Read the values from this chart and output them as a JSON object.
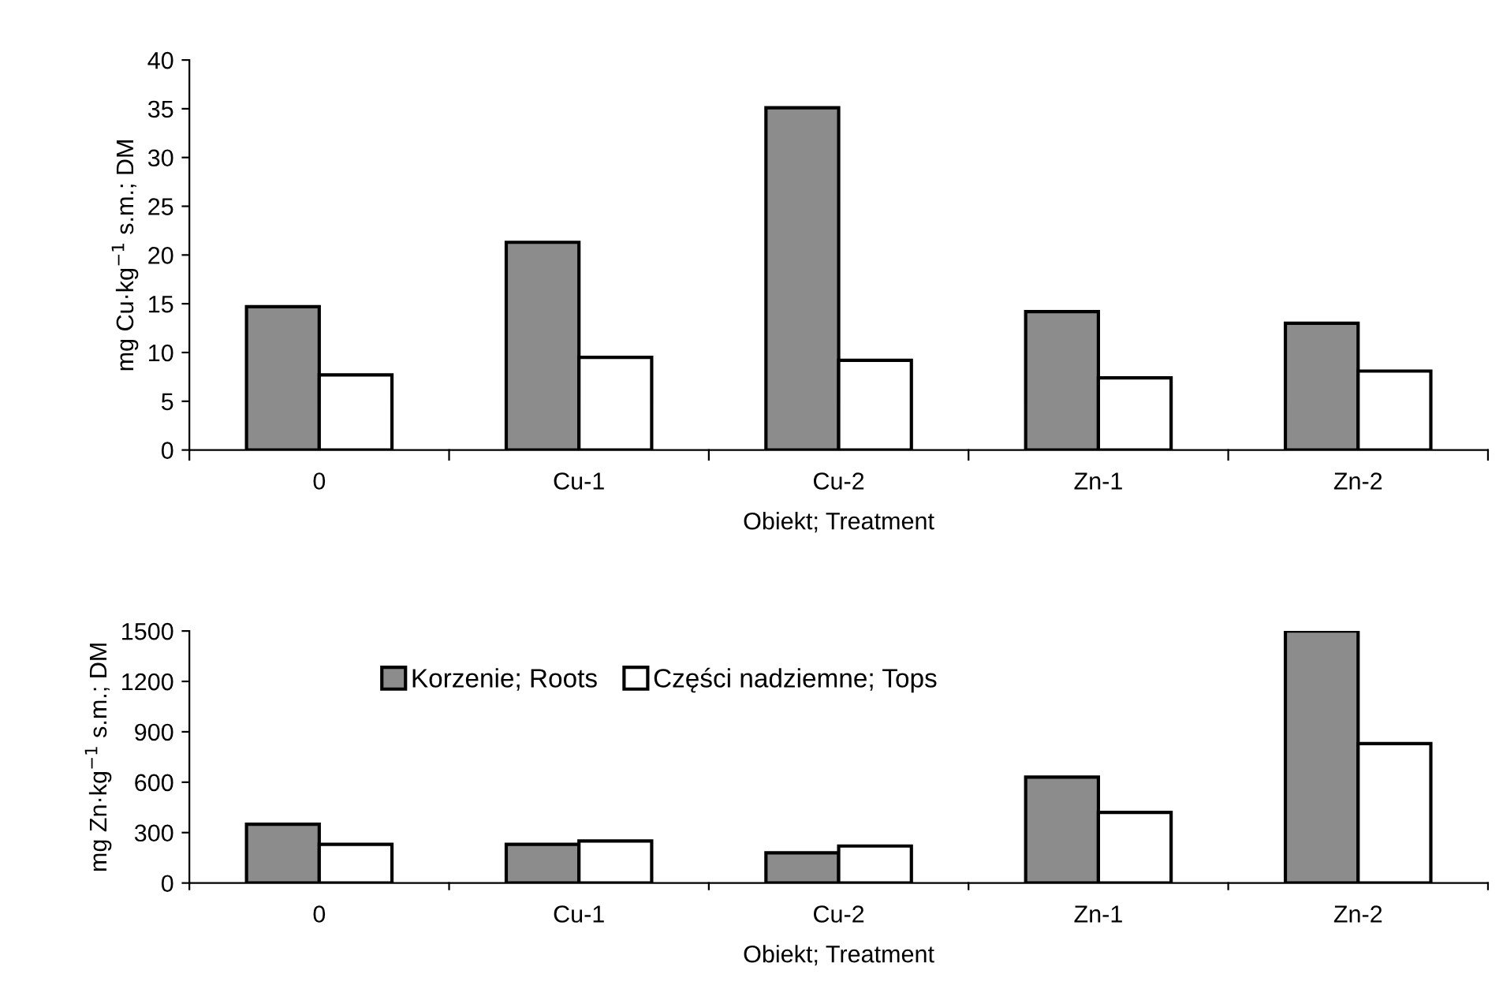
{
  "chart_data": [
    {
      "type": "bar",
      "categories": [
        "0",
        "Cu-1",
        "Cu-2",
        "Zn-1",
        "Zn-2"
      ],
      "xlabel": "Obiekt; Treatment",
      "ylabel": "mg Cu·kg$^{−1}$ s.m.; DM",
      "ylim": [
        0,
        40
      ],
      "yticks": [
        0,
        5,
        10,
        15,
        20,
        25,
        30,
        35,
        40
      ],
      "grid": false,
      "legend": false,
      "series": [
        {
          "color": "#8c8c8c",
          "values": [
            14.7,
            21.3,
            35.1,
            14.2,
            13.0
          ]
        },
        {
          "color": "#ffffff",
          "values": [
            7.7,
            9.5,
            9.2,
            7.4,
            8.1
          ]
        }
      ]
    },
    {
      "type": "bar",
      "categories": [
        "0",
        "Cu-1",
        "Cu-2",
        "Zn-1",
        "Zn-2"
      ],
      "xlabel": "Obiekt; Treatment",
      "ylabel": "mg Zn·kg$^{−1}$ s.m.; DM",
      "ylim": [
        0,
        1500
      ],
      "yticks": [
        0,
        300,
        600,
        900,
        1200,
        1500
      ],
      "grid": false,
      "legend": "top left",
      "series": [
        {
          "name": "Korzenie; Roots",
          "color": "#8c8c8c",
          "values": [
            350,
            230,
            180,
            630,
            1500
          ]
        },
        {
          "name": "Części nadziemne; Tops",
          "color": "#ffffff",
          "values": [
            230,
            250,
            220,
            420,
            830
          ]
        }
      ]
    }
  ]
}
